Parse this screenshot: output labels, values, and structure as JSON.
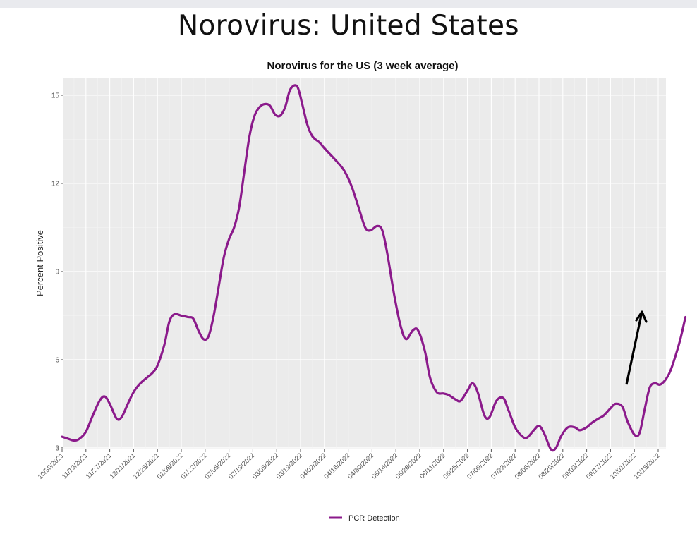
{
  "header": {
    "title": "Norovirus: United States"
  },
  "chart_data": {
    "type": "line",
    "title": "Norovirus for the US (3 week average)",
    "xlabel": "",
    "ylabel": "Percent Positive",
    "ylim": [
      2.95,
      15.6
    ],
    "yticks": [
      3,
      6,
      9,
      12,
      15
    ],
    "grid": true,
    "legend_position": "bottom",
    "x_tick_labels": [
      "10/30/2021",
      "11/13/2021",
      "11/27/2021",
      "12/11/2021",
      "12/25/2021",
      "01/08/2022",
      "01/22/2022",
      "02/05/2022",
      "02/19/2022",
      "03/05/2022",
      "03/19/2022",
      "04/02/2022",
      "04/16/2022",
      "04/30/2022",
      "05/14/2022",
      "05/28/2022",
      "06/11/2022",
      "06/25/2022",
      "07/09/2022",
      "07/23/2022",
      "08/06/2022",
      "08/20/2022",
      "09/03/2022",
      "09/17/2022",
      "10/01/2022",
      "10/15/2022"
    ],
    "x_start": "2021-10-30",
    "x_end": "2022-10-22",
    "series": [
      {
        "name": "PCR Detection",
        "color": "#8b1a8b",
        "points": [
          [
            "2021-10-30",
            3.38
          ],
          [
            "2021-11-03",
            3.3
          ],
          [
            "2021-11-06",
            3.25
          ],
          [
            "2021-11-09",
            3.3
          ],
          [
            "2021-11-13",
            3.55
          ],
          [
            "2021-11-17",
            4.1
          ],
          [
            "2021-11-21",
            4.6
          ],
          [
            "2021-11-24",
            4.75
          ],
          [
            "2021-11-27",
            4.5
          ],
          [
            "2021-12-01",
            4.0
          ],
          [
            "2021-12-04",
            4.05
          ],
          [
            "2021-12-08",
            4.55
          ],
          [
            "2021-12-11",
            4.9
          ],
          [
            "2021-12-15",
            5.2
          ],
          [
            "2021-12-19",
            5.4
          ],
          [
            "2021-12-22",
            5.55
          ],
          [
            "2021-12-25",
            5.8
          ],
          [
            "2021-12-29",
            6.5
          ],
          [
            "2022-01-01",
            7.3
          ],
          [
            "2022-01-04",
            7.55
          ],
          [
            "2022-01-08",
            7.5
          ],
          [
            "2022-01-12",
            7.45
          ],
          [
            "2022-01-15",
            7.4
          ],
          [
            "2022-01-18",
            7.0
          ],
          [
            "2022-01-21",
            6.7
          ],
          [
            "2022-01-24",
            6.8
          ],
          [
            "2022-01-27",
            7.5
          ],
          [
            "2022-01-30",
            8.5
          ],
          [
            "2022-02-02",
            9.5
          ],
          [
            "2022-02-05",
            10.1
          ],
          [
            "2022-02-08",
            10.5
          ],
          [
            "2022-02-11",
            11.2
          ],
          [
            "2022-02-14",
            12.4
          ],
          [
            "2022-02-17",
            13.6
          ],
          [
            "2022-02-20",
            14.3
          ],
          [
            "2022-02-23",
            14.6
          ],
          [
            "2022-02-26",
            14.7
          ],
          [
            "2022-03-01",
            14.65
          ],
          [
            "2022-03-04",
            14.35
          ],
          [
            "2022-03-07",
            14.3
          ],
          [
            "2022-03-10",
            14.6
          ],
          [
            "2022-03-13",
            15.2
          ],
          [
            "2022-03-17",
            15.3
          ],
          [
            "2022-03-20",
            14.7
          ],
          [
            "2022-03-23",
            14.0
          ],
          [
            "2022-03-26",
            13.6
          ],
          [
            "2022-03-30",
            13.4
          ],
          [
            "2022-04-02",
            13.2
          ],
          [
            "2022-04-06",
            12.95
          ],
          [
            "2022-04-10",
            12.7
          ],
          [
            "2022-04-14",
            12.4
          ],
          [
            "2022-04-18",
            11.9
          ],
          [
            "2022-04-22",
            11.2
          ],
          [
            "2022-04-26",
            10.5
          ],
          [
            "2022-04-29",
            10.4
          ],
          [
            "2022-05-03",
            10.55
          ],
          [
            "2022-05-06",
            10.4
          ],
          [
            "2022-05-09",
            9.6
          ],
          [
            "2022-05-13",
            8.2
          ],
          [
            "2022-05-17",
            7.1
          ],
          [
            "2022-05-20",
            6.7
          ],
          [
            "2022-05-24",
            7.0
          ],
          [
            "2022-05-27",
            7.0
          ],
          [
            "2022-05-31",
            6.3
          ],
          [
            "2022-06-03",
            5.4
          ],
          [
            "2022-06-07",
            4.9
          ],
          [
            "2022-06-11",
            4.85
          ],
          [
            "2022-06-14",
            4.8
          ],
          [
            "2022-06-18",
            4.65
          ],
          [
            "2022-06-21",
            4.6
          ],
          [
            "2022-06-25",
            4.95
          ],
          [
            "2022-06-28",
            5.2
          ],
          [
            "2022-07-01",
            4.9
          ],
          [
            "2022-07-05",
            4.1
          ],
          [
            "2022-07-08",
            4.05
          ],
          [
            "2022-07-12",
            4.6
          ],
          [
            "2022-07-16",
            4.7
          ],
          [
            "2022-07-19",
            4.3
          ],
          [
            "2022-07-23",
            3.7
          ],
          [
            "2022-07-27",
            3.4
          ],
          [
            "2022-07-30",
            3.35
          ],
          [
            "2022-08-03",
            3.6
          ],
          [
            "2022-08-06",
            3.75
          ],
          [
            "2022-08-09",
            3.5
          ],
          [
            "2022-08-13",
            2.95
          ],
          [
            "2022-08-16",
            3.0
          ],
          [
            "2022-08-19",
            3.4
          ],
          [
            "2022-08-23",
            3.7
          ],
          [
            "2022-08-27",
            3.7
          ],
          [
            "2022-08-30",
            3.6
          ],
          [
            "2022-09-03",
            3.7
          ],
          [
            "2022-09-06",
            3.85
          ],
          [
            "2022-09-10",
            4.0
          ],
          [
            "2022-09-13",
            4.1
          ],
          [
            "2022-09-17",
            4.35
          ],
          [
            "2022-09-20",
            4.5
          ],
          [
            "2022-09-24",
            4.4
          ],
          [
            "2022-09-27",
            3.9
          ],
          [
            "2022-10-01",
            3.45
          ],
          [
            "2022-10-04",
            3.5
          ],
          [
            "2022-10-07",
            4.3
          ],
          [
            "2022-10-10",
            5.05
          ],
          [
            "2022-10-13",
            5.2
          ],
          [
            "2022-10-16",
            5.15
          ],
          [
            "2022-10-19",
            5.3
          ],
          [
            "2022-10-22",
            5.6
          ],
          [
            "2022-10-25",
            6.1
          ],
          [
            "2022-10-28",
            6.7
          ],
          [
            "2022-10-31",
            7.45
          ]
        ]
      }
    ],
    "annotation": {
      "type": "arrow",
      "color": "#000000"
    }
  }
}
